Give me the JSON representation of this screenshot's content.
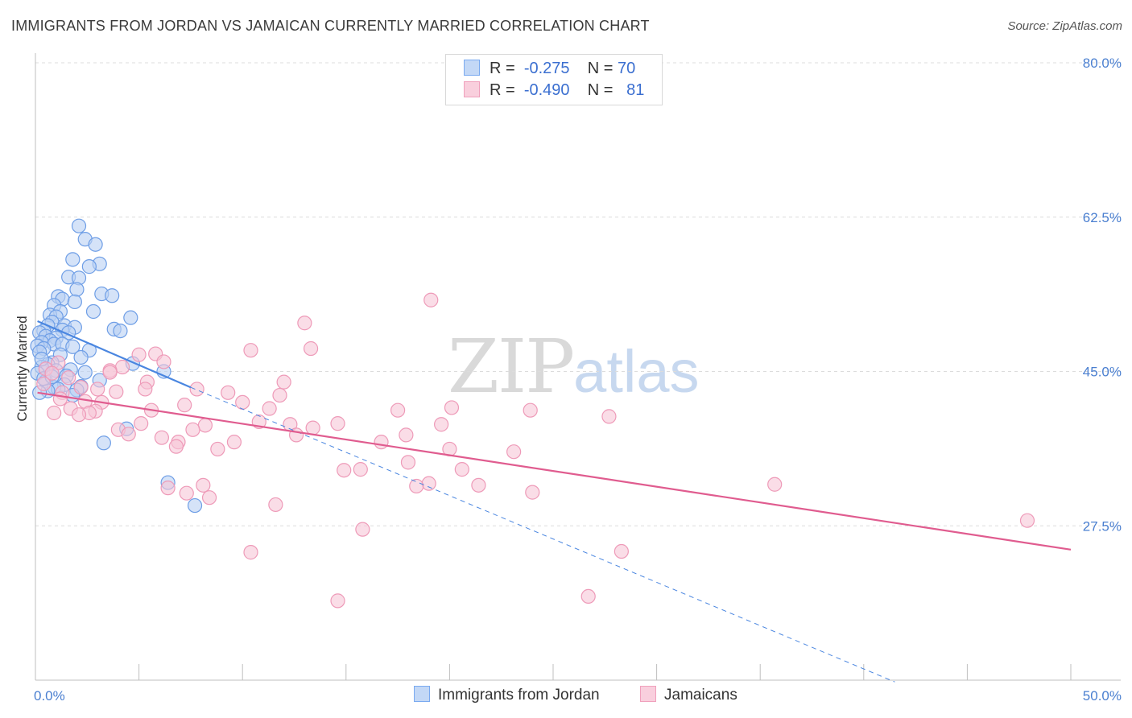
{
  "title": "IMMIGRANTS FROM JORDAN VS JAMAICAN CURRENTLY MARRIED CORRELATION CHART",
  "source": "Source: ZipAtlas.com",
  "watermark": {
    "zip": "ZIP",
    "atlas": "atlas"
  },
  "legend": {
    "rows": [
      {
        "r_label": "R =",
        "r_value": "-0.275",
        "n_label": "N =",
        "n_value": "70",
        "color": "#7aaaf0",
        "fill": "#c3d8f6"
      },
      {
        "r_label": "R =",
        "r_value": "-0.490",
        "n_label": "N =",
        "n_value": "81",
        "color": "#f0a0bc",
        "fill": "#f9cfdd"
      }
    ]
  },
  "bottom_legend": [
    {
      "label": "Immigrants from Jordan",
      "color": "#7aaaf0",
      "fill": "#c3d8f6"
    },
    {
      "label": "Jamaicans",
      "color": "#f0a0bc",
      "fill": "#f9cfdd"
    }
  ],
  "chart_data": {
    "type": "scatter",
    "ylabel": "Currently Married",
    "xlim": [
      0,
      50
    ],
    "ylim": [
      10,
      80
    ],
    "x_tick_labels": [
      {
        "value": 0,
        "label": "0.0%"
      },
      {
        "value": 50,
        "label": "50.0%"
      }
    ],
    "y_tick_labels": [
      {
        "value": 27.5,
        "label": "27.5%"
      },
      {
        "value": 45.0,
        "label": "45.0%"
      },
      {
        "value": 62.5,
        "label": "62.5%"
      },
      {
        "value": 80.0,
        "label": "80.0%"
      }
    ],
    "grid": "horizontal dashed",
    "legend_position": "top-center",
    "series": [
      {
        "name": "Immigrants from Jordan",
        "color": "#4a86e0",
        "marker_fill": "#b9d1f4",
        "marker_stroke": "#6e9ee6",
        "trend": {
          "x_start": 0.1,
          "y_start": 50.7,
          "x_solid_end": 7.5,
          "y_solid_end": 43.2,
          "x_dash_end": 41.5,
          "y_dash_end": 9.8
        },
        "points": [
          [
            2.1,
            61.5
          ],
          [
            2.4,
            60.0
          ],
          [
            2.9,
            59.4
          ],
          [
            1.8,
            57.7
          ],
          [
            3.1,
            57.2
          ],
          [
            2.6,
            56.9
          ],
          [
            1.6,
            55.7
          ],
          [
            2.1,
            55.6
          ],
          [
            2.0,
            54.3
          ],
          [
            3.2,
            53.8
          ],
          [
            3.7,
            53.6
          ],
          [
            1.1,
            53.5
          ],
          [
            1.3,
            53.2
          ],
          [
            1.9,
            52.9
          ],
          [
            0.9,
            52.5
          ],
          [
            1.2,
            51.8
          ],
          [
            2.8,
            51.8
          ],
          [
            0.7,
            51.4
          ],
          [
            1.0,
            51.2
          ],
          [
            4.6,
            51.1
          ],
          [
            0.8,
            50.6
          ],
          [
            0.6,
            50.2
          ],
          [
            1.4,
            50.2
          ],
          [
            1.9,
            50.0
          ],
          [
            3.8,
            49.8
          ],
          [
            1.3,
            49.7
          ],
          [
            0.4,
            49.6
          ],
          [
            0.2,
            49.4
          ],
          [
            1.6,
            49.4
          ],
          [
            4.1,
            49.6
          ],
          [
            0.5,
            49.0
          ],
          [
            1.0,
            48.8
          ],
          [
            0.7,
            48.5
          ],
          [
            0.3,
            48.3
          ],
          [
            0.9,
            48.1
          ],
          [
            1.3,
            48.1
          ],
          [
            0.1,
            47.9
          ],
          [
            0.4,
            47.6
          ],
          [
            1.8,
            47.8
          ],
          [
            2.6,
            47.4
          ],
          [
            0.2,
            47.2
          ],
          [
            1.2,
            46.9
          ],
          [
            2.2,
            46.6
          ],
          [
            0.8,
            46.0
          ],
          [
            0.6,
            45.8
          ],
          [
            4.7,
            45.9
          ],
          [
            6.2,
            45.0
          ],
          [
            1.7,
            45.2
          ],
          [
            0.3,
            45.5
          ],
          [
            1.0,
            45.1
          ],
          [
            2.4,
            44.9
          ],
          [
            0.1,
            44.8
          ],
          [
            1.5,
            44.5
          ],
          [
            3.1,
            44.0
          ],
          [
            0.5,
            43.9
          ],
          [
            1.4,
            43.5
          ],
          [
            0.9,
            43.2
          ],
          [
            2.2,
            43.3
          ],
          [
            1.1,
            43.0
          ],
          [
            0.6,
            42.8
          ],
          [
            2.0,
            42.9
          ],
          [
            0.2,
            42.6
          ],
          [
            0.4,
            44.2
          ],
          [
            1.8,
            42.3
          ],
          [
            3.3,
            36.9
          ],
          [
            6.4,
            32.4
          ],
          [
            7.7,
            29.8
          ],
          [
            4.4,
            38.5
          ],
          [
            0.3,
            46.4
          ],
          [
            0.8,
            44.4
          ]
        ]
      },
      {
        "name": "Jamaicans",
        "color": "#e05c8f",
        "marker_fill": "#f7c6d7",
        "marker_stroke": "#ee9ab8",
        "trend": {
          "x_start": 0.1,
          "y_start": 42.6,
          "x_end": 50.0,
          "y_end": 24.8
        },
        "points": [
          [
            19.1,
            53.1
          ],
          [
            13.0,
            50.5
          ],
          [
            13.3,
            47.6
          ],
          [
            10.4,
            47.4
          ],
          [
            5.0,
            46.9
          ],
          [
            5.8,
            47.0
          ],
          [
            6.2,
            46.1
          ],
          [
            4.2,
            45.5
          ],
          [
            3.6,
            45.1
          ],
          [
            1.1,
            46.0
          ],
          [
            0.5,
            45.3
          ],
          [
            0.8,
            44.8
          ],
          [
            12.0,
            43.8
          ],
          [
            5.4,
            43.8
          ],
          [
            7.8,
            43.0
          ],
          [
            1.6,
            44.3
          ],
          [
            2.2,
            43.2
          ],
          [
            3.0,
            43.0
          ],
          [
            3.9,
            42.7
          ],
          [
            9.3,
            42.6
          ],
          [
            11.8,
            42.3
          ],
          [
            1.3,
            42.6
          ],
          [
            10.0,
            41.5
          ],
          [
            2.4,
            41.6
          ],
          [
            3.2,
            41.5
          ],
          [
            7.2,
            41.2
          ],
          [
            11.3,
            40.8
          ],
          [
            2.9,
            40.5
          ],
          [
            1.7,
            40.8
          ],
          [
            5.6,
            40.6
          ],
          [
            0.9,
            40.3
          ],
          [
            17.5,
            40.6
          ],
          [
            20.1,
            40.9
          ],
          [
            23.9,
            40.6
          ],
          [
            27.7,
            39.9
          ],
          [
            2.6,
            40.3
          ],
          [
            10.8,
            39.3
          ],
          [
            12.3,
            39.0
          ],
          [
            14.6,
            39.1
          ],
          [
            19.6,
            39.0
          ],
          [
            8.2,
            38.9
          ],
          [
            5.1,
            39.1
          ],
          [
            4.0,
            38.4
          ],
          [
            7.6,
            38.4
          ],
          [
            4.5,
            37.9
          ],
          [
            12.6,
            37.8
          ],
          [
            17.9,
            37.8
          ],
          [
            6.1,
            37.5
          ],
          [
            9.6,
            37.0
          ],
          [
            16.7,
            37.0
          ],
          [
            6.9,
            37.0
          ],
          [
            6.8,
            36.5
          ],
          [
            8.8,
            36.2
          ],
          [
            20.0,
            36.2
          ],
          [
            23.1,
            35.9
          ],
          [
            18.0,
            34.7
          ],
          [
            15.7,
            33.9
          ],
          [
            14.9,
            33.8
          ],
          [
            20.6,
            33.9
          ],
          [
            19.0,
            32.3
          ],
          [
            21.4,
            32.1
          ],
          [
            8.1,
            32.1
          ],
          [
            35.7,
            32.2
          ],
          [
            18.4,
            32.0
          ],
          [
            24.0,
            31.3
          ],
          [
            6.4,
            31.8
          ],
          [
            7.3,
            31.2
          ],
          [
            8.4,
            30.7
          ],
          [
            11.6,
            29.9
          ],
          [
            47.9,
            28.1
          ],
          [
            15.8,
            27.1
          ],
          [
            10.4,
            24.5
          ],
          [
            28.3,
            24.6
          ],
          [
            26.7,
            19.5
          ],
          [
            14.6,
            19.0
          ],
          [
            5.3,
            43.0
          ],
          [
            13.4,
            38.6
          ],
          [
            1.2,
            41.9
          ],
          [
            0.4,
            43.6
          ],
          [
            3.6,
            44.9
          ],
          [
            2.1,
            40.1
          ]
        ]
      }
    ]
  }
}
